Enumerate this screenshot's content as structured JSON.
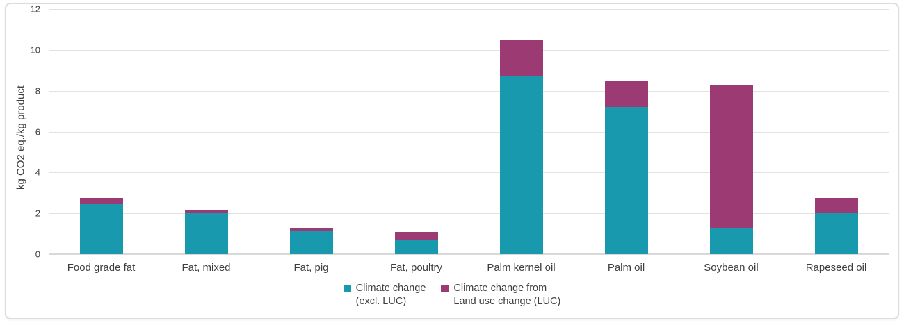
{
  "chart_data": {
    "type": "bar",
    "stacked": true,
    "title": "",
    "xlabel": "",
    "ylabel": "kg CO2 eq./kg product",
    "ylim": [
      0,
      12
    ],
    "yticks": [
      0,
      2,
      4,
      6,
      8,
      10,
      12
    ],
    "grid": "horizontal",
    "legend_position": "bottom-center",
    "categories": [
      "Food grade fat",
      "Fat, mixed",
      "Fat, pig",
      "Fat, poultry",
      "Palm kernel oil",
      "Palm oil",
      "Soybean oil",
      "Rapeseed oil"
    ],
    "series": [
      {
        "name": "Climate change (excl. LUC)",
        "color": "#1999ae",
        "values": [
          2.45,
          2.0,
          1.15,
          0.7,
          8.75,
          7.2,
          1.3,
          2.0
        ]
      },
      {
        "name": "Climate change from Land use change (LUC)",
        "color": "#9c3a73",
        "values": [
          0.3,
          0.15,
          0.1,
          0.4,
          1.75,
          1.3,
          7.0,
          0.75
        ]
      }
    ]
  },
  "legend": {
    "items": [
      {
        "label": "Climate change\n(excl. LUC)",
        "color": "#1999ae"
      },
      {
        "label": "Climate change from\nLand use change (LUC)",
        "color": "#9c3a73"
      }
    ]
  },
  "colors": {
    "teal": "#1999ae",
    "magenta": "#9c3a73",
    "gridline": "#e2e2e2",
    "axisline": "#d9d9d9",
    "text": "#3f3f3f",
    "card_border": "#dcdcdc"
  }
}
